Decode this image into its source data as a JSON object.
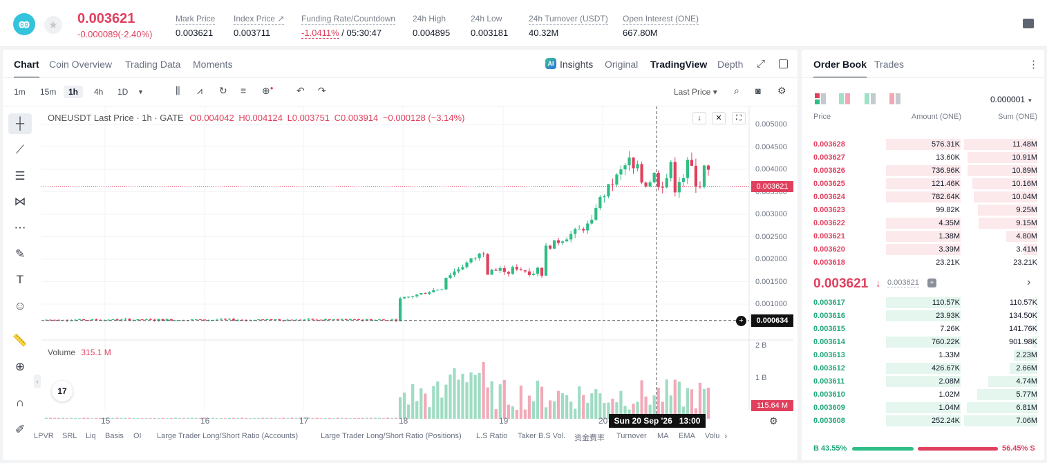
{
  "header": {
    "symbol_logo": "ꙭ",
    "last_price": "0.003621",
    "change": "-0.000089(-2.40%)",
    "stats": [
      {
        "label": "Mark Price",
        "value": "0.003621"
      },
      {
        "label": "Index Price ↗",
        "value": "0.003711"
      },
      {
        "label": "Funding Rate/Countdown",
        "value_neg": "-1.0411%",
        "value": " / 05:30:47"
      },
      {
        "label": "24h High",
        "value": "0.004895"
      },
      {
        "label": "24h Low",
        "value": "0.003181"
      },
      {
        "label": "24h Turnover (USDT)",
        "value": "40.32M"
      },
      {
        "label": "Open Interest (ONE)",
        "value": "667.80M"
      }
    ]
  },
  "chart_panel": {
    "tabs": [
      "Chart",
      "Coin Overview",
      "Trading Data",
      "Moments"
    ],
    "view_tabs": [
      "Insights",
      "Original",
      "TradingView",
      "Depth"
    ],
    "intervals": [
      "1m",
      "15m",
      "1h",
      "4h",
      "1D"
    ],
    "price_type": "Last Price ▾",
    "legend": {
      "title": "ONEUSDT Last Price · 1h · GATE",
      "o": "O0.004042",
      "h": "H0.004124",
      "l": "L0.003751",
      "c": "C0.003914",
      "chg": "−0.000128 (−3.14%)"
    },
    "volume_label": "Volume",
    "volume_value": "315.1 M",
    "last_price_tag": "0.003621",
    "cursor_price_tag": "0.000634",
    "volume_tag": "115.64 M",
    "crosshair_time": "Sun 20 Sep '26   13:00",
    "y_ticks": [
      "0.005000",
      "0.004500",
      "0.004000",
      "0.003500",
      "0.003000",
      "0.002500",
      "0.002000",
      "0.001500",
      "0.001000"
    ],
    "vol_ticks": [
      "2 B",
      "1 B"
    ],
    "x_ticks": [
      "15",
      "16",
      "17",
      "18",
      "19",
      "20"
    ],
    "bottom_bar": [
      "LPVR",
      "SRL",
      "Liq",
      "Basis",
      "OI",
      "Large Trader Long/Short Ratio (Accounts)",
      "Large Trader Long/Short Ratio (Positions)",
      "L.S Ratio",
      "Taker B.S Vol.",
      "资金费率",
      "Turnover",
      "MA",
      "EMA",
      "Volu"
    ]
  },
  "order_book": {
    "tabs": [
      "Order Book",
      "Trades"
    ],
    "precision": "0.000001",
    "headers": [
      "Price",
      "Amount (ONE)",
      "Sum (ONE)"
    ],
    "asks": [
      {
        "price": "0.003628",
        "amount": "576.31K",
        "sum": "11.48M",
        "af": 0.62,
        "sf": 1.0
      },
      {
        "price": "0.003627",
        "amount": "13.60K",
        "sum": "10.91M",
        "af": 0.0,
        "sf": 0.95
      },
      {
        "price": "0.003626",
        "amount": "736.96K",
        "sum": "10.89M",
        "af": 0.62,
        "sf": 0.95
      },
      {
        "price": "0.003625",
        "amount": "121.46K",
        "sum": "10.16M",
        "af": 0.62,
        "sf": 0.89
      },
      {
        "price": "0.003624",
        "amount": "782.64K",
        "sum": "10.04M",
        "af": 0.62,
        "sf": 0.87
      },
      {
        "price": "0.003623",
        "amount": "99.82K",
        "sum": "9.25M",
        "af": 0.0,
        "sf": 0.81
      },
      {
        "price": "0.003622",
        "amount": "4.35M",
        "sum": "9.15M",
        "af": 0.62,
        "sf": 0.8
      },
      {
        "price": "0.003621",
        "amount": "1.38M",
        "sum": "4.80M",
        "af": 0.62,
        "sf": 0.42
      },
      {
        "price": "0.003620",
        "amount": "3.39M",
        "sum": "3.41M",
        "af": 0.62,
        "sf": 0.19
      },
      {
        "price": "0.003618",
        "amount": "23.21K",
        "sum": "23.21K",
        "af": 0.0,
        "sf": 0.0
      }
    ],
    "mid_price": "0.003621",
    "mid_arrow": "↓",
    "mark_price": "0.003621",
    "bids": [
      {
        "price": "0.003617",
        "amount": "110.57K",
        "sum": "110.57K",
        "af": 0.62,
        "sf": 0.02
      },
      {
        "price": "0.003616",
        "amount": "23.93K",
        "sum": "134.50K",
        "af": 0.62,
        "sf": 0.02
      },
      {
        "price": "0.003615",
        "amount": "7.26K",
        "sum": "141.76K",
        "af": 0.0,
        "sf": 0.02
      },
      {
        "price": "0.003614",
        "amount": "760.22K",
        "sum": "901.98K",
        "af": 0.62,
        "sf": 0.07
      },
      {
        "price": "0.003613",
        "amount": "1.33M",
        "sum": "2.23M",
        "af": 0.0,
        "sf": 0.32
      },
      {
        "price": "0.003612",
        "amount": "426.67K",
        "sum": "2.66M",
        "af": 0.62,
        "sf": 0.38
      },
      {
        "price": "0.003611",
        "amount": "2.08M",
        "sum": "4.74M",
        "af": 0.62,
        "sf": 0.67
      },
      {
        "price": "0.003610",
        "amount": "1.02M",
        "sum": "5.77M",
        "af": 0.0,
        "sf": 0.82
      },
      {
        "price": "0.003609",
        "amount": "1.04M",
        "sum": "6.81M",
        "af": 0.62,
        "sf": 0.96
      },
      {
        "price": "0.003608",
        "amount": "252.24K",
        "sum": "7.06M",
        "af": 0.62,
        "sf": 1.0
      }
    ],
    "buy_ratio": "B 43.55%",
    "sell_ratio": "56.45% S",
    "buy_fraction": 0.4355
  },
  "colors": {
    "up": "#2ebd85",
    "down": "#e0405e"
  }
}
